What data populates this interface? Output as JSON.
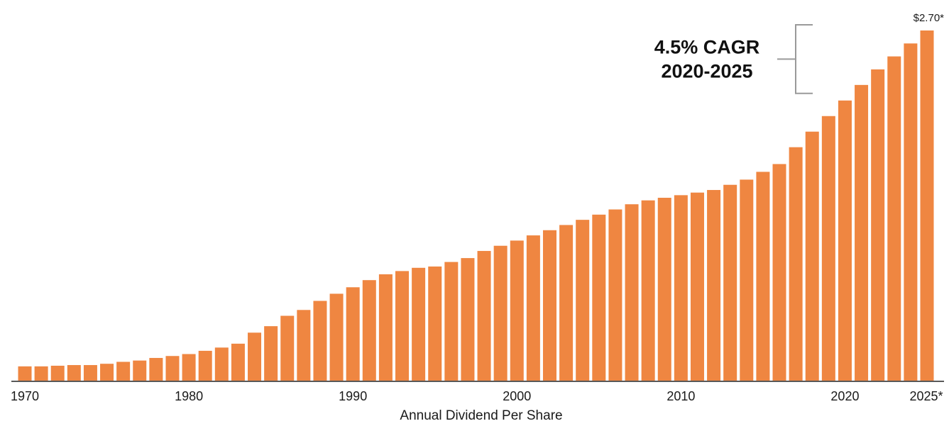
{
  "chart_data": {
    "type": "bar",
    "title": "",
    "xlabel": "Annual Dividend Per Share",
    "ylabel": "",
    "ylim": [
      0,
      2.7
    ],
    "grid": false,
    "legend": "none",
    "bar_color": "#ef8641",
    "x": [
      1970,
      1971,
      1972,
      1973,
      1974,
      1975,
      1976,
      1977,
      1978,
      1979,
      1980,
      1981,
      1982,
      1983,
      1984,
      1985,
      1986,
      1987,
      1988,
      1989,
      1990,
      1991,
      1992,
      1993,
      1994,
      1995,
      1996,
      1997,
      1998,
      1999,
      2000,
      2001,
      2002,
      2003,
      2004,
      2005,
      2006,
      2007,
      2008,
      2009,
      2010,
      2011,
      2012,
      2013,
      2014,
      2015,
      2016,
      2017,
      2018,
      2019,
      2020,
      2021,
      2022,
      2023,
      2024,
      2025
    ],
    "values": [
      0.11,
      0.11,
      0.115,
      0.12,
      0.12,
      0.13,
      0.145,
      0.155,
      0.175,
      0.19,
      0.205,
      0.23,
      0.255,
      0.285,
      0.37,
      0.42,
      0.5,
      0.545,
      0.615,
      0.67,
      0.72,
      0.775,
      0.82,
      0.845,
      0.87,
      0.88,
      0.915,
      0.945,
      1.0,
      1.04,
      1.08,
      1.12,
      1.16,
      1.2,
      1.24,
      1.28,
      1.32,
      1.36,
      1.39,
      1.41,
      1.43,
      1.45,
      1.47,
      1.51,
      1.55,
      1.61,
      1.67,
      1.8,
      1.92,
      2.04,
      2.16,
      2.28,
      2.4,
      2.5,
      2.6,
      2.7
    ],
    "tick_labels": [
      "1970",
      "1980",
      "1990",
      "2000",
      "2010",
      "2020",
      "2025*"
    ],
    "tick_years": [
      1970,
      1980,
      1990,
      2000,
      2010,
      2020,
      2025
    ],
    "data_labels": [
      {
        "year": 2025,
        "text": "$2.70*"
      }
    ],
    "annotation": {
      "lines": [
        "4.5% CAGR",
        "2020-2025"
      ],
      "bracket_from_value": 2.16,
      "bracket_to_value": 2.7
    }
  }
}
